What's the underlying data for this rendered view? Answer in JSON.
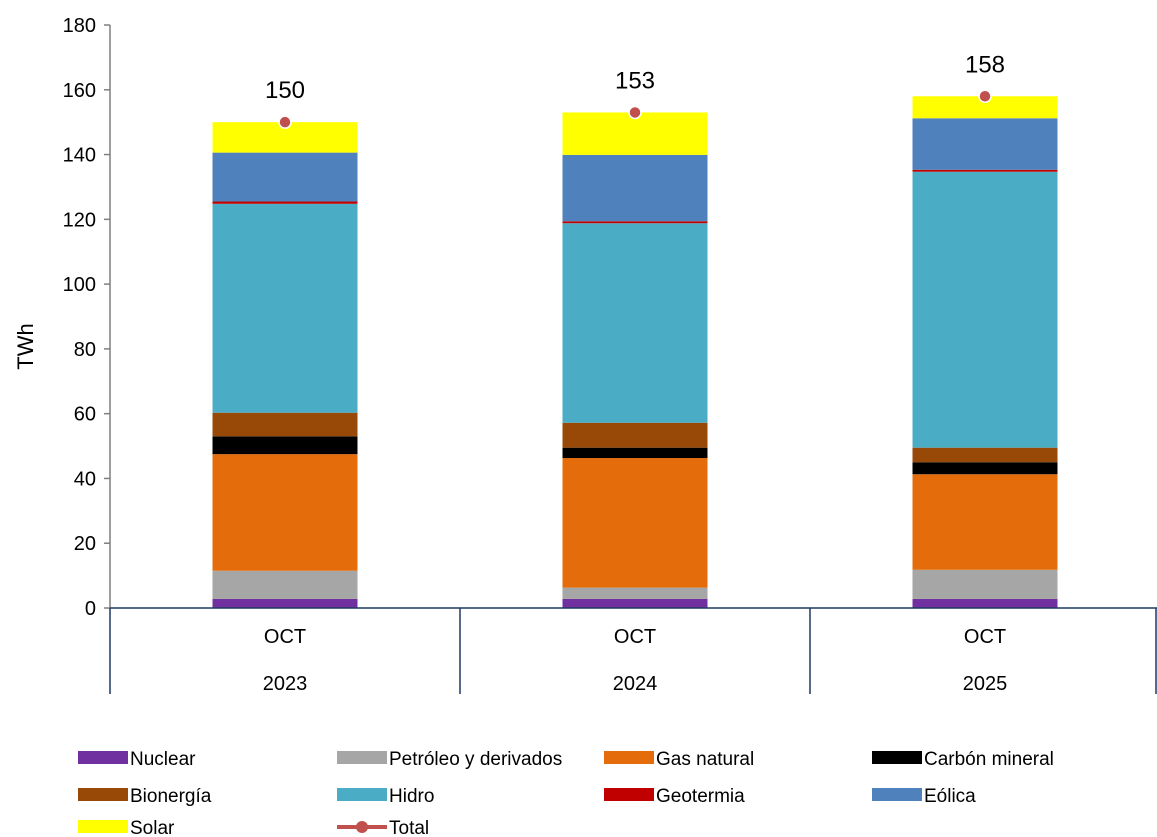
{
  "chart_data": {
    "type": "bar",
    "stacked": true,
    "ylabel": "TWh",
    "ylim": [
      0,
      180
    ],
    "yticks": [
      0,
      20,
      40,
      60,
      80,
      100,
      120,
      140,
      160,
      180
    ],
    "grid": false,
    "legend_position": "bottom",
    "categories": [
      {
        "month": "OCT",
        "year": "2023"
      },
      {
        "month": "OCT",
        "year": "2024"
      },
      {
        "month": "OCT",
        "year": "2025"
      }
    ],
    "series": [
      {
        "name": "Nuclear",
        "color": "#7030A0",
        "values": [
          2.8,
          2.8,
          2.8
        ]
      },
      {
        "name": "Petróleo y derivados",
        "color": "#A6A6A6",
        "values": [
          8.7,
          3.5,
          9.0
        ]
      },
      {
        "name": "Gas natural",
        "color": "#E46C0A",
        "values": [
          36.0,
          40.0,
          29.5
        ]
      },
      {
        "name": "Carbón mineral",
        "color": "#000000",
        "values": [
          5.5,
          3.2,
          3.7
        ]
      },
      {
        "name": "Bionergía",
        "color": "#984807",
        "values": [
          7.3,
          7.7,
          4.5
        ]
      },
      {
        "name": "Hidro",
        "color": "#4BACC6",
        "values": [
          64.5,
          61.6,
          85.2
        ]
      },
      {
        "name": "Geotermia",
        "color": "#C00000",
        "values": [
          0.7,
          0.6,
          0.6
        ]
      },
      {
        "name": "Eólica",
        "color": "#4F81BD",
        "values": [
          15.1,
          20.5,
          15.9
        ]
      },
      {
        "name": "Solar",
        "color": "#FFFF00",
        "values": [
          9.4,
          13.1,
          6.8
        ]
      }
    ],
    "total": {
      "name": "Total",
      "color": "#C0504D",
      "values": [
        150,
        153,
        158
      ],
      "labels": [
        "150",
        "153",
        "158"
      ]
    }
  }
}
